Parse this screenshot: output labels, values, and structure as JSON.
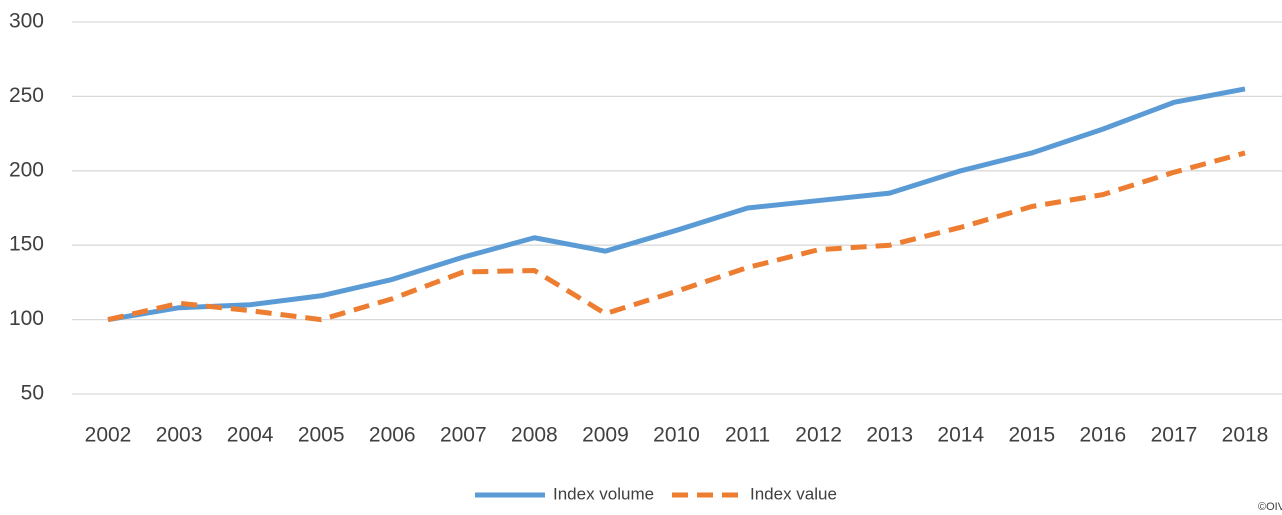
{
  "chart_data": {
    "type": "line",
    "categories": [
      "2002",
      "2003",
      "2004",
      "2005",
      "2006",
      "2007",
      "2008",
      "2009",
      "2010",
      "2011",
      "2012",
      "2013",
      "2014",
      "2015",
      "2016",
      "2017",
      "2018"
    ],
    "series": [
      {
        "name": "Index volume",
        "color": "#5b9bd5",
        "dash": "solid",
        "values": [
          100,
          108,
          110,
          116,
          127,
          142,
          155,
          146,
          160,
          175,
          180,
          185,
          200,
          212,
          228,
          246,
          255
        ]
      },
      {
        "name": "Index value",
        "color": "#ed7d31",
        "dash": "dashed",
        "values": [
          100,
          111,
          106,
          100,
          114,
          132,
          133,
          104,
          119,
          135,
          147,
          150,
          162,
          176,
          184,
          199,
          212
        ]
      }
    ],
    "ylim": [
      50,
      300
    ],
    "yticks": [
      50,
      100,
      150,
      200,
      250,
      300
    ],
    "grid": true,
    "legend": "bottom",
    "source": "©OIV"
  }
}
